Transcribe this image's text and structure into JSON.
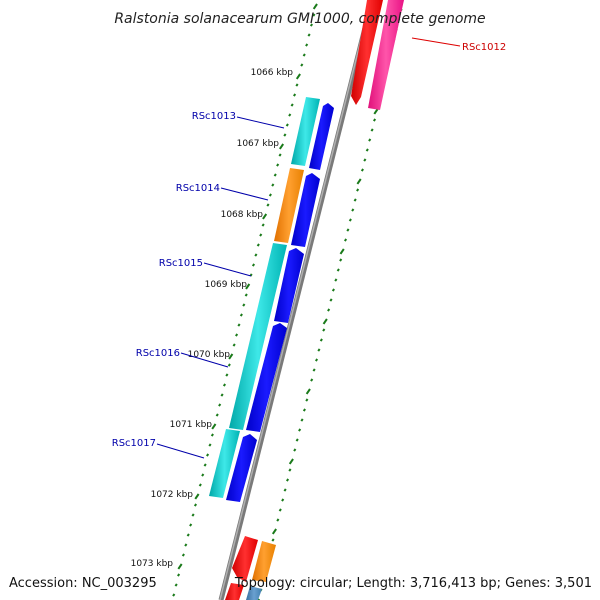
{
  "title": "Ralstonia solanacearum GMI1000, complete genome",
  "accession": "Accession: NC_003295",
  "summary": "Topology: circular; Length: 3,716,413 bp; Genes: 3,501",
  "kbp_labels": [
    "1066 kbp",
    "1067 kbp",
    "1068 kbp",
    "1069 kbp",
    "1070 kbp",
    "1071 kbp",
    "1072 kbp",
    "1073 kbp"
  ],
  "genes": [
    {
      "name": "RSc1012",
      "color": "#cc0000"
    },
    {
      "name": "RSc1013",
      "color": "#0000aa"
    },
    {
      "name": "RSc1014",
      "color": "#0000aa"
    },
    {
      "name": "RSc1015",
      "color": "#0000aa"
    },
    {
      "name": "RSc1016",
      "color": "#0000aa"
    },
    {
      "name": "RSc1017",
      "color": "#0000aa"
    }
  ],
  "colors": {
    "backbone": "#808080",
    "tick": "#1a7a1a",
    "cds_cyan": "#00c8c8",
    "cds_blue": "#0000e6",
    "cds_orange": "#ff8c00",
    "cds_red": "#ff0000",
    "cds_pink": "#ff1493",
    "cds_steel": "#4682b4"
  }
}
